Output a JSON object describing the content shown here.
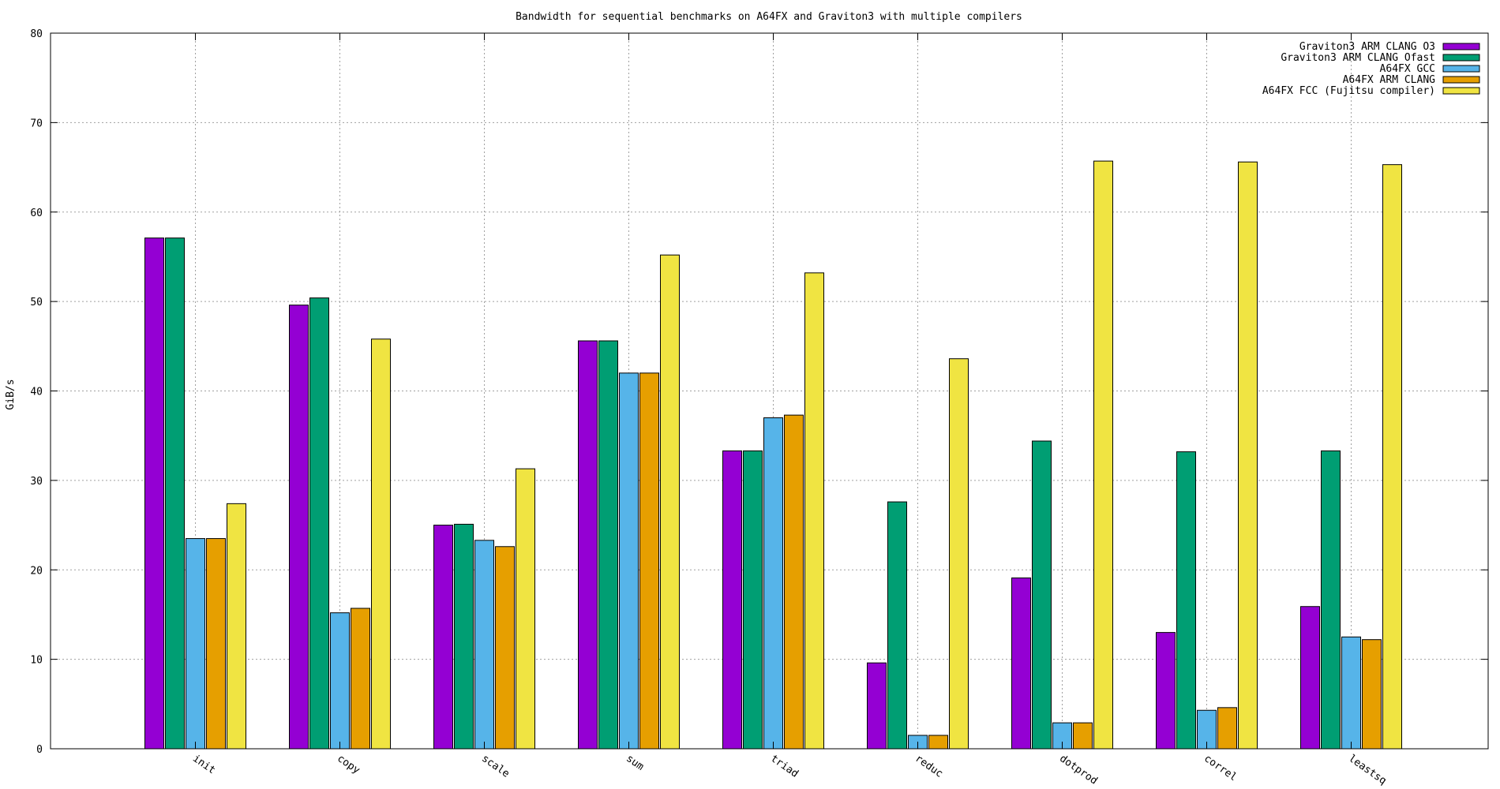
{
  "chart_data": {
    "type": "bar",
    "title": "Bandwidth for sequential benchmarks on A64FX and Graviton3 with multiple compilers",
    "xlabel": "",
    "ylabel": "GiB/s",
    "ylim": [
      0,
      80
    ],
    "yticks": [
      0,
      10,
      20,
      30,
      40,
      50,
      60,
      70,
      80
    ],
    "grid": true,
    "legend_position": "top-right",
    "categories": [
      "init",
      "copy",
      "scale",
      "sum",
      "triad",
      "reduc",
      "dotprod",
      "correl",
      "leastsq"
    ],
    "series": [
      {
        "name": "Graviton3 ARM CLANG O3",
        "color": "#9400d3",
        "values": [
          57.1,
          49.6,
          25.0,
          45.6,
          33.3,
          9.6,
          19.1,
          13.0,
          15.9
        ]
      },
      {
        "name": "Graviton3 ARM CLANG Ofast",
        "color": "#009e73",
        "values": [
          57.1,
          50.4,
          25.1,
          45.6,
          33.3,
          27.6,
          34.4,
          33.2,
          33.3
        ]
      },
      {
        "name": "A64FX GCC",
        "color": "#56b4e9",
        "values": [
          23.5,
          15.2,
          23.3,
          42.0,
          37.0,
          1.5,
          2.9,
          4.3,
          12.5
        ]
      },
      {
        "name": "A64FX ARM CLANG",
        "color": "#e69f00",
        "values": [
          23.5,
          15.7,
          22.6,
          42.0,
          37.3,
          1.5,
          2.9,
          4.6,
          12.2
        ]
      },
      {
        "name": "A64FX FCC (Fujitsu compiler)",
        "color": "#f0e442",
        "values": [
          27.4,
          45.8,
          31.3,
          55.2,
          53.2,
          43.6,
          65.7,
          65.6,
          65.3
        ]
      }
    ]
  }
}
